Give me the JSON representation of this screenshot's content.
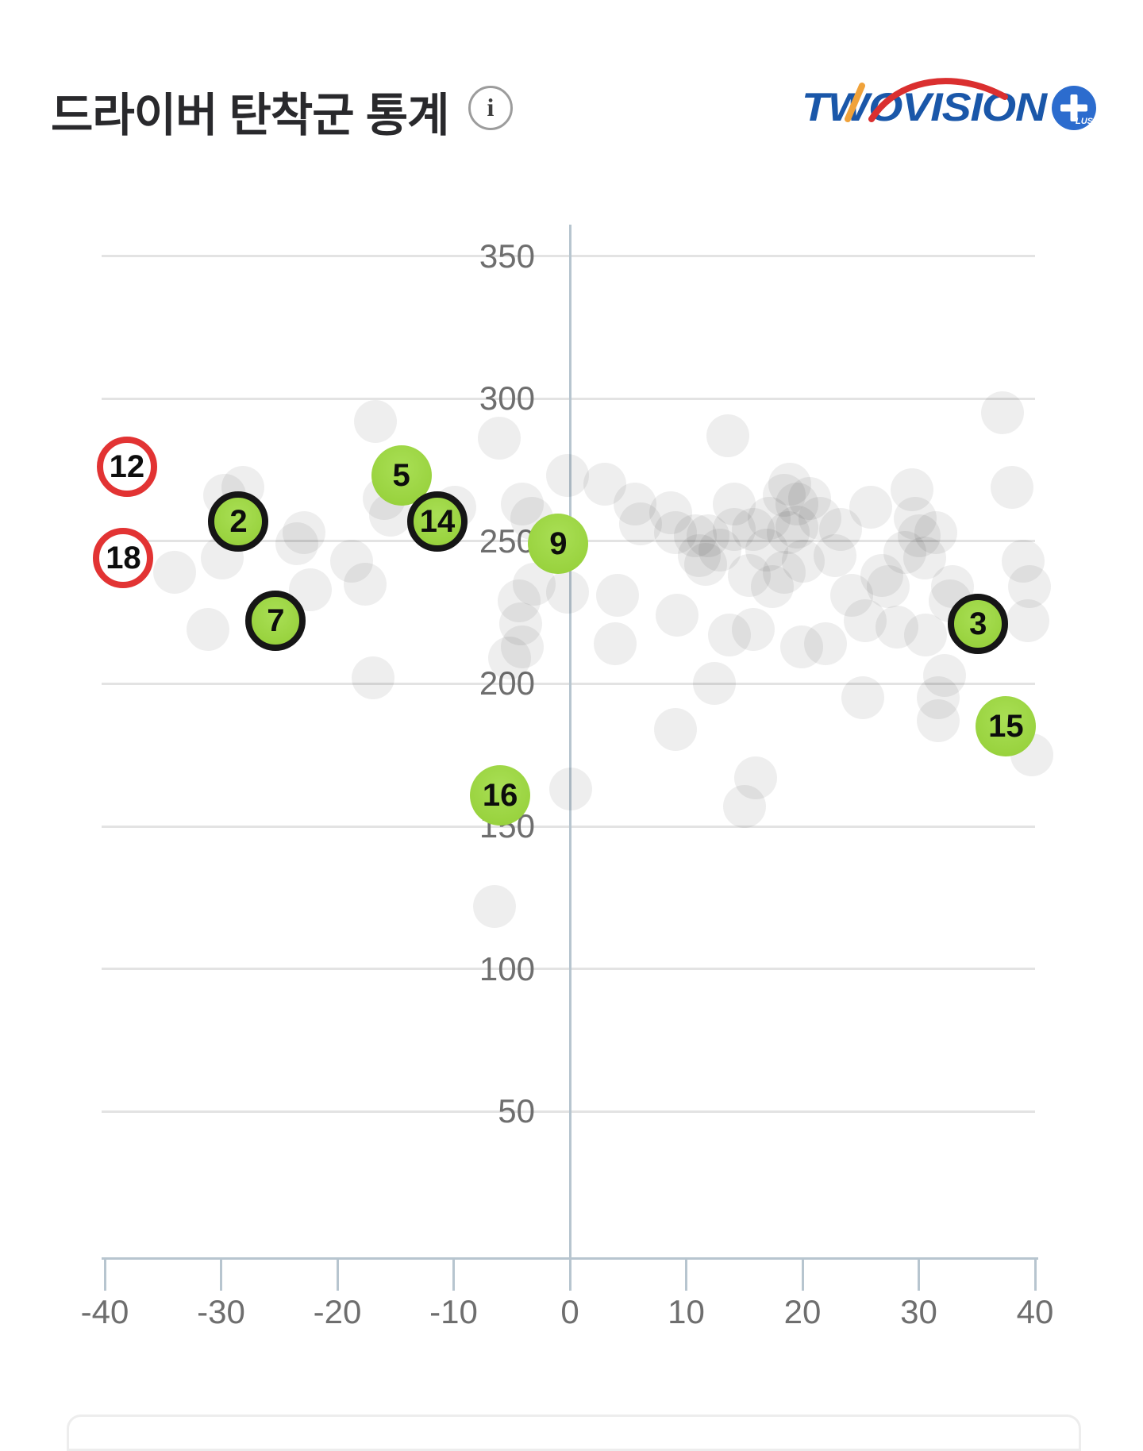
{
  "header": {
    "title": "드라이버 탄착군 통계",
    "info_icon_glyph": "i",
    "logo": {
      "text": "TWOVISION",
      "plus_circle_glyph": "+",
      "plus_circle_small_text": "LUS",
      "text_color": "#1a57a9",
      "swoosh_color": "#da2f2f",
      "accent_color": "#f0a23a",
      "circle_color": "#2c6cce"
    }
  },
  "chart_data": {
    "type": "scatter",
    "title": "드라이버 탄착군 통계",
    "xlabel": "",
    "ylabel": "",
    "grid": true,
    "legend": "none",
    "xlim": [
      -40,
      40
    ],
    "ylim": [
      0,
      361
    ],
    "x_ticks": [
      -40,
      -30,
      -20,
      -10,
      0,
      10,
      20,
      30,
      40
    ],
    "y_gridlines": [
      50,
      100,
      150,
      200,
      250,
      300,
      350
    ],
    "colors": {
      "shot_dot": "rgba(0,0,0,0.066)",
      "highlight_fill": "#9cd343",
      "highlight_ring": "#161616",
      "out_of_range_ring": "#e23333",
      "gridline": "#e3e3e3",
      "axis": "#b7c5cf",
      "tick_label": "#6e6e6e"
    },
    "series": [
      {
        "name": "all-shots",
        "marker": "gray-dot",
        "points": [
          [
            -28.1,
            269
          ],
          [
            -29.7,
            266
          ],
          [
            -34,
            239
          ],
          [
            -29.9,
            244
          ],
          [
            -22.9,
            253
          ],
          [
            -23.5,
            249
          ],
          [
            -18.8,
            243
          ],
          [
            -22.3,
            233
          ],
          [
            -17.6,
            235
          ],
          [
            -31.1,
            219
          ],
          [
            -16.9,
            202
          ],
          [
            -16,
            265
          ],
          [
            -15.4,
            259
          ],
          [
            -16.7,
            292
          ],
          [
            -6.1,
            286
          ],
          [
            -9.9,
            262
          ],
          [
            -4.1,
            263
          ],
          [
            -3.3,
            258
          ],
          [
            -0.2,
            273
          ],
          [
            3,
            270
          ],
          [
            -3.1,
            235
          ],
          [
            -4.4,
            229
          ],
          [
            -0.2,
            232
          ],
          [
            4.1,
            231
          ],
          [
            -4.2,
            221
          ],
          [
            -4.1,
            213
          ],
          [
            -5.2,
            209
          ],
          [
            3.9,
            214
          ],
          [
            9.2,
            224
          ],
          [
            0.1,
            163
          ],
          [
            -6.5,
            122
          ],
          [
            5.6,
            263
          ],
          [
            6.1,
            256
          ],
          [
            8.7,
            260
          ],
          [
            9.1,
            253
          ],
          [
            10.8,
            252
          ],
          [
            11.9,
            252
          ],
          [
            11.1,
            245
          ],
          [
            12.9,
            247
          ],
          [
            14.1,
            263
          ],
          [
            14.1,
            254
          ],
          [
            15.8,
            254
          ],
          [
            16.9,
            247
          ],
          [
            17.1,
            258
          ],
          [
            18.4,
            266
          ],
          [
            18.8,
            253
          ],
          [
            13.6,
            287
          ],
          [
            11.7,
            242
          ],
          [
            15.4,
            238
          ],
          [
            18.4,
            239
          ],
          [
            17.4,
            234
          ],
          [
            15.8,
            219
          ],
          [
            13.7,
            217
          ],
          [
            12.4,
            200
          ],
          [
            9.1,
            184
          ],
          [
            15,
            157
          ],
          [
            16,
            167
          ],
          [
            18.9,
            270
          ],
          [
            19.5,
            263
          ],
          [
            20.6,
            265
          ],
          [
            21.5,
            258
          ],
          [
            19.5,
            255
          ],
          [
            23.3,
            254
          ],
          [
            25.9,
            262
          ],
          [
            29.4,
            268
          ],
          [
            29.7,
            258
          ],
          [
            30,
            252
          ],
          [
            31.5,
            253
          ],
          [
            28.8,
            246
          ],
          [
            30.5,
            244
          ],
          [
            20.1,
            243
          ],
          [
            22.8,
            245
          ],
          [
            26.8,
            238
          ],
          [
            27.4,
            234
          ],
          [
            32.9,
            234
          ],
          [
            39,
            243
          ],
          [
            39.5,
            234
          ],
          [
            37.2,
            295
          ],
          [
            38,
            269
          ],
          [
            24.2,
            231
          ],
          [
            25.4,
            222
          ],
          [
            28.1,
            220
          ],
          [
            30.6,
            217
          ],
          [
            22,
            214
          ],
          [
            19.9,
            213
          ],
          [
            25.2,
            195
          ],
          [
            31.7,
            195
          ],
          [
            32.2,
            203
          ],
          [
            31.7,
            187
          ],
          [
            39.4,
            222
          ],
          [
            39.7,
            175
          ],
          [
            32.7,
            229
          ]
        ]
      },
      {
        "name": "numbered-shots",
        "marker": "green-number",
        "points": [
          {
            "label": "5",
            "x": -14.5,
            "y": 273,
            "ring": false
          },
          {
            "label": "2",
            "x": -28.5,
            "y": 257,
            "ring": true
          },
          {
            "label": "14",
            "x": -11.4,
            "y": 257,
            "ring": true
          },
          {
            "label": "9",
            "x": -1,
            "y": 249,
            "ring": false
          },
          {
            "label": "7",
            "x": -25.3,
            "y": 222,
            "ring": true
          },
          {
            "label": "3",
            "x": 35.1,
            "y": 221,
            "ring": true
          },
          {
            "label": "15",
            "x": 37.5,
            "y": 185,
            "ring": false
          },
          {
            "label": "16",
            "x": -6,
            "y": 161,
            "ring": false
          }
        ]
      },
      {
        "name": "out-of-range-shots",
        "marker": "red-ring",
        "points": [
          {
            "label": "12",
            "x": -38.1,
            "y": 276
          },
          {
            "label": "18",
            "x": -38.4,
            "y": 244
          }
        ]
      }
    ]
  }
}
